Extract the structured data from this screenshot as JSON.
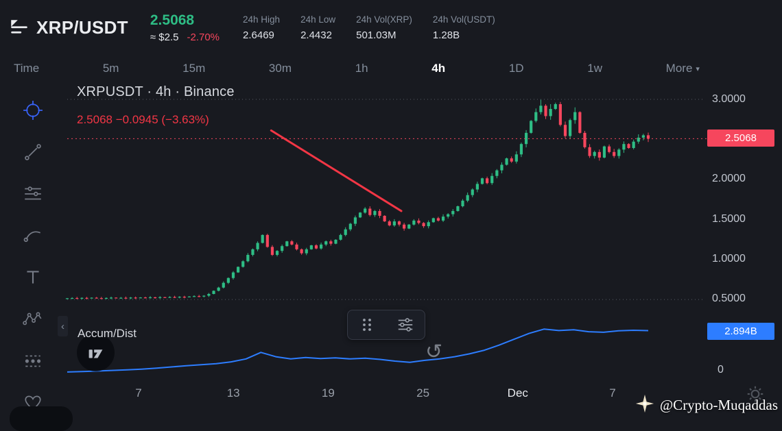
{
  "colors": {
    "background": "#181a20",
    "text_primary": "#eaecef",
    "text_muted": "#848e9c",
    "green": "#2ebd85",
    "red": "#f6465d",
    "trend_red": "#f23645",
    "blue": "#2d7dff",
    "accent_crosshair": "#3964fa"
  },
  "header": {
    "pair": "XRP/USDT",
    "last_price": "2.5068",
    "approx_fiat": "≈ $2.5",
    "change_pct": "-2.70%",
    "stats": [
      {
        "label": "24h High",
        "value": "2.6469"
      },
      {
        "label": "24h Low",
        "value": "2.4432"
      },
      {
        "label": "24h Vol(XRP)",
        "value": "501.03M"
      },
      {
        "label": "24h Vol(USDT)",
        "value": "1.28B"
      }
    ]
  },
  "timeframes": {
    "items": [
      "Time",
      "5m",
      "15m",
      "30m",
      "1h",
      "4h",
      "1D",
      "1w",
      "More"
    ],
    "active": "4h",
    "more_caret": "▾"
  },
  "left_toolbar": {
    "tools": [
      "crosshair-tool",
      "trendline-tool",
      "horizontal-lines-tool",
      "brush-tool",
      "text-tool",
      "pattern-tool",
      "forecast-tool",
      "favorites-heart-tool"
    ],
    "active_tool": "crosshair-tool",
    "collapse_glyph": "‹"
  },
  "chart": {
    "title": "XRPUSDT · 4h · Binance",
    "change_line": "2.5068  −0.0945 (−3.63%)",
    "indicator_label": "Accum/Dist",
    "badges": {
      "last_price": "2.5068",
      "accum": "2.894B",
      "accum_zero": "0"
    },
    "y_axis": [
      {
        "label": "3.0000",
        "price": 3.0
      },
      {
        "label": "2.0000",
        "price": 2.0
      },
      {
        "label": "1.5000",
        "price": 1.5
      },
      {
        "label": "1.0000",
        "price": 1.0
      },
      {
        "label": "0.5000",
        "price": 0.5
      }
    ],
    "x_axis": [
      "7",
      "13",
      "19",
      "25",
      "Dec",
      "7"
    ],
    "refresh_glyph": "↺"
  },
  "chart_data": {
    "type": "candlestick",
    "symbol": "XRPUSDT",
    "interval": "4h",
    "exchange": "Binance",
    "last": 2.5068,
    "change": -0.0945,
    "change_pct": -3.63,
    "y_range": [
      0.44,
      3.05
    ],
    "levels": {
      "dotted_high": 3.0,
      "dotted_low": 0.49,
      "last_price_line": 2.5068
    },
    "closes": [
      0.506,
      0.509,
      0.504,
      0.511,
      0.507,
      0.513,
      0.508,
      0.505,
      0.51,
      0.514,
      0.509,
      0.512,
      0.507,
      0.515,
      0.511,
      0.516,
      0.512,
      0.518,
      0.514,
      0.52,
      0.516,
      0.522,
      0.518,
      0.525,
      0.521,
      0.528,
      0.533,
      0.529,
      0.538,
      0.56,
      0.6,
      0.64,
      0.7,
      0.76,
      0.83,
      0.9,
      0.97,
      1.05,
      1.12,
      1.2,
      1.3,
      1.15,
      1.05,
      1.1,
      1.16,
      1.22,
      1.18,
      1.12,
      1.07,
      1.12,
      1.17,
      1.13,
      1.18,
      1.22,
      1.19,
      1.24,
      1.3,
      1.37,
      1.44,
      1.52,
      1.58,
      1.63,
      1.55,
      1.6,
      1.54,
      1.47,
      1.42,
      1.47,
      1.43,
      1.38,
      1.43,
      1.48,
      1.45,
      1.41,
      1.46,
      1.51,
      1.48,
      1.53,
      1.56,
      1.6,
      1.66,
      1.73,
      1.8,
      1.87,
      1.94,
      2.01,
      1.95,
      2.04,
      2.11,
      2.18,
      2.26,
      2.22,
      2.31,
      2.44,
      2.58,
      2.73,
      2.84,
      2.92,
      2.79,
      2.88,
      2.94,
      2.68,
      2.54,
      2.74,
      2.84,
      2.58,
      2.4,
      2.29,
      2.34,
      2.27,
      2.41,
      2.34,
      2.29,
      2.37,
      2.44,
      2.39,
      2.47,
      2.52,
      2.55,
      2.5068
    ],
    "trend_annotation": {
      "x1_frac": 0.351,
      "price1": 2.61,
      "x2_frac": 0.575,
      "price2": 1.6
    },
    "indicator": {
      "name": "Accum/Dist",
      "type": "line",
      "range_billions": [
        0,
        3.2
      ],
      "current_billions": 2.894,
      "values_billions": [
        0.05,
        0.08,
        0.12,
        0.16,
        0.2,
        0.25,
        0.32,
        0.4,
        0.48,
        0.55,
        0.62,
        0.75,
        0.95,
        1.4,
        1.1,
        0.95,
        1.05,
        0.98,
        1.02,
        0.95,
        1.0,
        0.92,
        0.8,
        0.72,
        0.85,
        0.95,
        1.1,
        1.3,
        1.55,
        1.9,
        2.3,
        2.7,
        3.0,
        2.9,
        2.95,
        2.82,
        2.78,
        2.88,
        2.92,
        2.894
      ]
    }
  },
  "overlay": {
    "watermark": "@Crypto-Muqaddas"
  }
}
